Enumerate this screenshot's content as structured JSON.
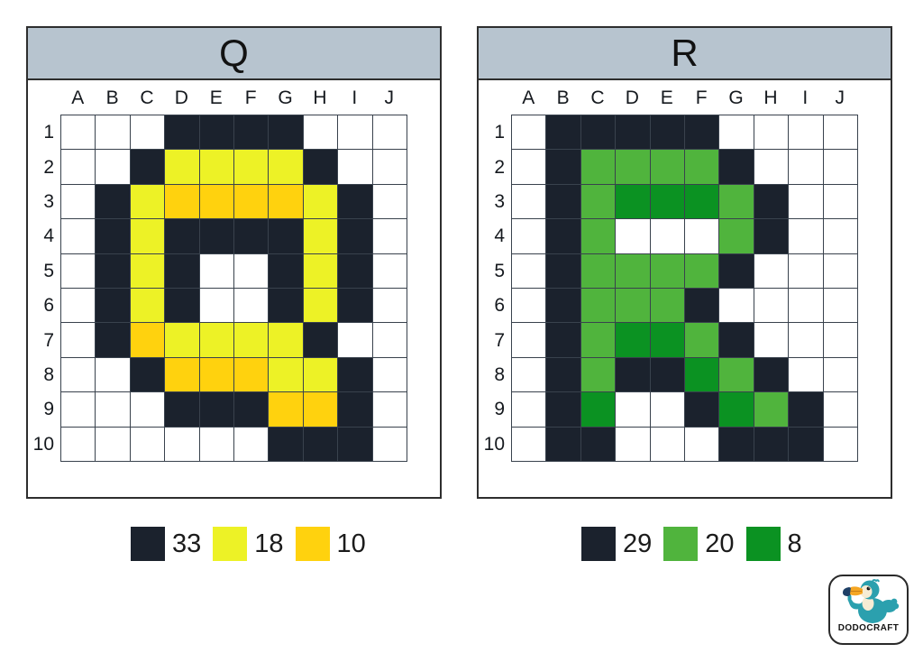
{
  "colors": {
    "header_bg": "#b7c4cf",
    "grid_line": "#39424d",
    "panel_border": "#2e2e2e",
    "white": "#ffffff",
    "dark": "#1b222d",
    "yellow": "#edf226",
    "gold": "#ffd20e",
    "green": "#50b43d",
    "dark_green": "#0b9222"
  },
  "panels": [
    {
      "title": "Q",
      "columns": [
        "A",
        "B",
        "C",
        "D",
        "E",
        "F",
        "G",
        "H",
        "I",
        "J"
      ],
      "row_labels": [
        "1",
        "2",
        "3",
        "4",
        "5",
        "6",
        "7",
        "8",
        "9",
        "10"
      ],
      "palette": {
        ".": "#ffffff",
        "K": "#1b222d",
        "Y": "#edf226",
        "G": "#ffd20e"
      },
      "pixels": [
        "...KKKK...",
        "..KYYYYK..",
        ".KYGGGGYK.",
        ".KYKKKKYK.",
        ".KYK..KYK.",
        ".KYK..KYK.",
        ".KGYYYYK..",
        "..KGGGYYK.",
        "...KKKGGK.",
        "......KKK."
      ],
      "legend": [
        {
          "color": "#1b222d",
          "count": "33"
        },
        {
          "color": "#edf226",
          "count": "18"
        },
        {
          "color": "#ffd20e",
          "count": "10"
        }
      ]
    },
    {
      "title": "R",
      "columns": [
        "A",
        "B",
        "C",
        "D",
        "E",
        "F",
        "G",
        "H",
        "I",
        "J"
      ],
      "row_labels": [
        "1",
        "2",
        "3",
        "4",
        "5",
        "6",
        "7",
        "8",
        "9",
        "10"
      ],
      "palette": {
        ".": "#ffffff",
        "K": "#1b222d",
        "g": "#50b43d",
        "D": "#0b9222"
      },
      "pixels": [
        ".KKKKK....",
        ".KggggK...",
        ".KgDDDgK..",
        ".Kg...gK..",
        ".KggggK...",
        ".KgggK....",
        ".KgDDgK...",
        ".KgKKDgK..",
        ".KD..KDgK.",
        ".KK...KKK."
      ],
      "legend": [
        {
          "color": "#1b222d",
          "count": "29"
        },
        {
          "color": "#50b43d",
          "count": "20"
        },
        {
          "color": "#0b9222",
          "count": "8"
        }
      ]
    }
  ],
  "logo": {
    "text": "DODOCRAFT"
  }
}
